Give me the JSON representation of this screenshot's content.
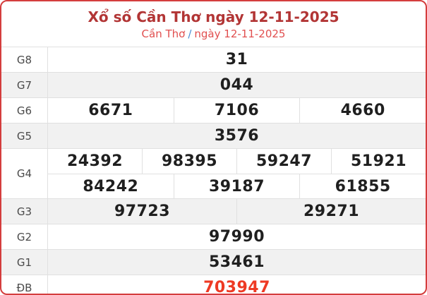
{
  "header": {
    "title": "Xổ số Cần Thơ ngày 12-11-2025",
    "subtitle_region": "Cần Thơ",
    "subtitle_separator": "/",
    "subtitle_date": "ngày 12-11-2025"
  },
  "colors": {
    "card_border": "#d43d3d",
    "title_red": "#b23535",
    "subtitle_red": "#e14f4f",
    "subtitle_slash_blue": "#4a8ed6",
    "special_prize_red": "#ee3a24",
    "striped_row_bg": "#f1f1f1",
    "grid_line": "#e0e0e0",
    "number_text": "#1f1f1f",
    "label_text": "#4a4a4a"
  },
  "table": {
    "rows": [
      {
        "label": "G8",
        "groups": [
          [
            "31"
          ]
        ],
        "special": false
      },
      {
        "label": "G7",
        "groups": [
          [
            "044"
          ]
        ],
        "special": false
      },
      {
        "label": "G6",
        "groups": [
          [
            "6671",
            "7106",
            "4660"
          ]
        ],
        "special": false
      },
      {
        "label": "G5",
        "groups": [
          [
            "3576"
          ]
        ],
        "special": false
      },
      {
        "label": "G4",
        "groups": [
          [
            "24392",
            "98395",
            "59247",
            "51921"
          ],
          [
            "84242",
            "39187",
            "61855"
          ]
        ],
        "special": false
      },
      {
        "label": "G3",
        "groups": [
          [
            "97723",
            "29271"
          ]
        ],
        "special": false
      },
      {
        "label": "G2",
        "groups": [
          [
            "97990"
          ]
        ],
        "special": false
      },
      {
        "label": "G1",
        "groups": [
          [
            "53461"
          ]
        ],
        "special": false
      },
      {
        "label": "ĐB",
        "groups": [
          [
            "703947"
          ]
        ],
        "special": true
      }
    ]
  }
}
